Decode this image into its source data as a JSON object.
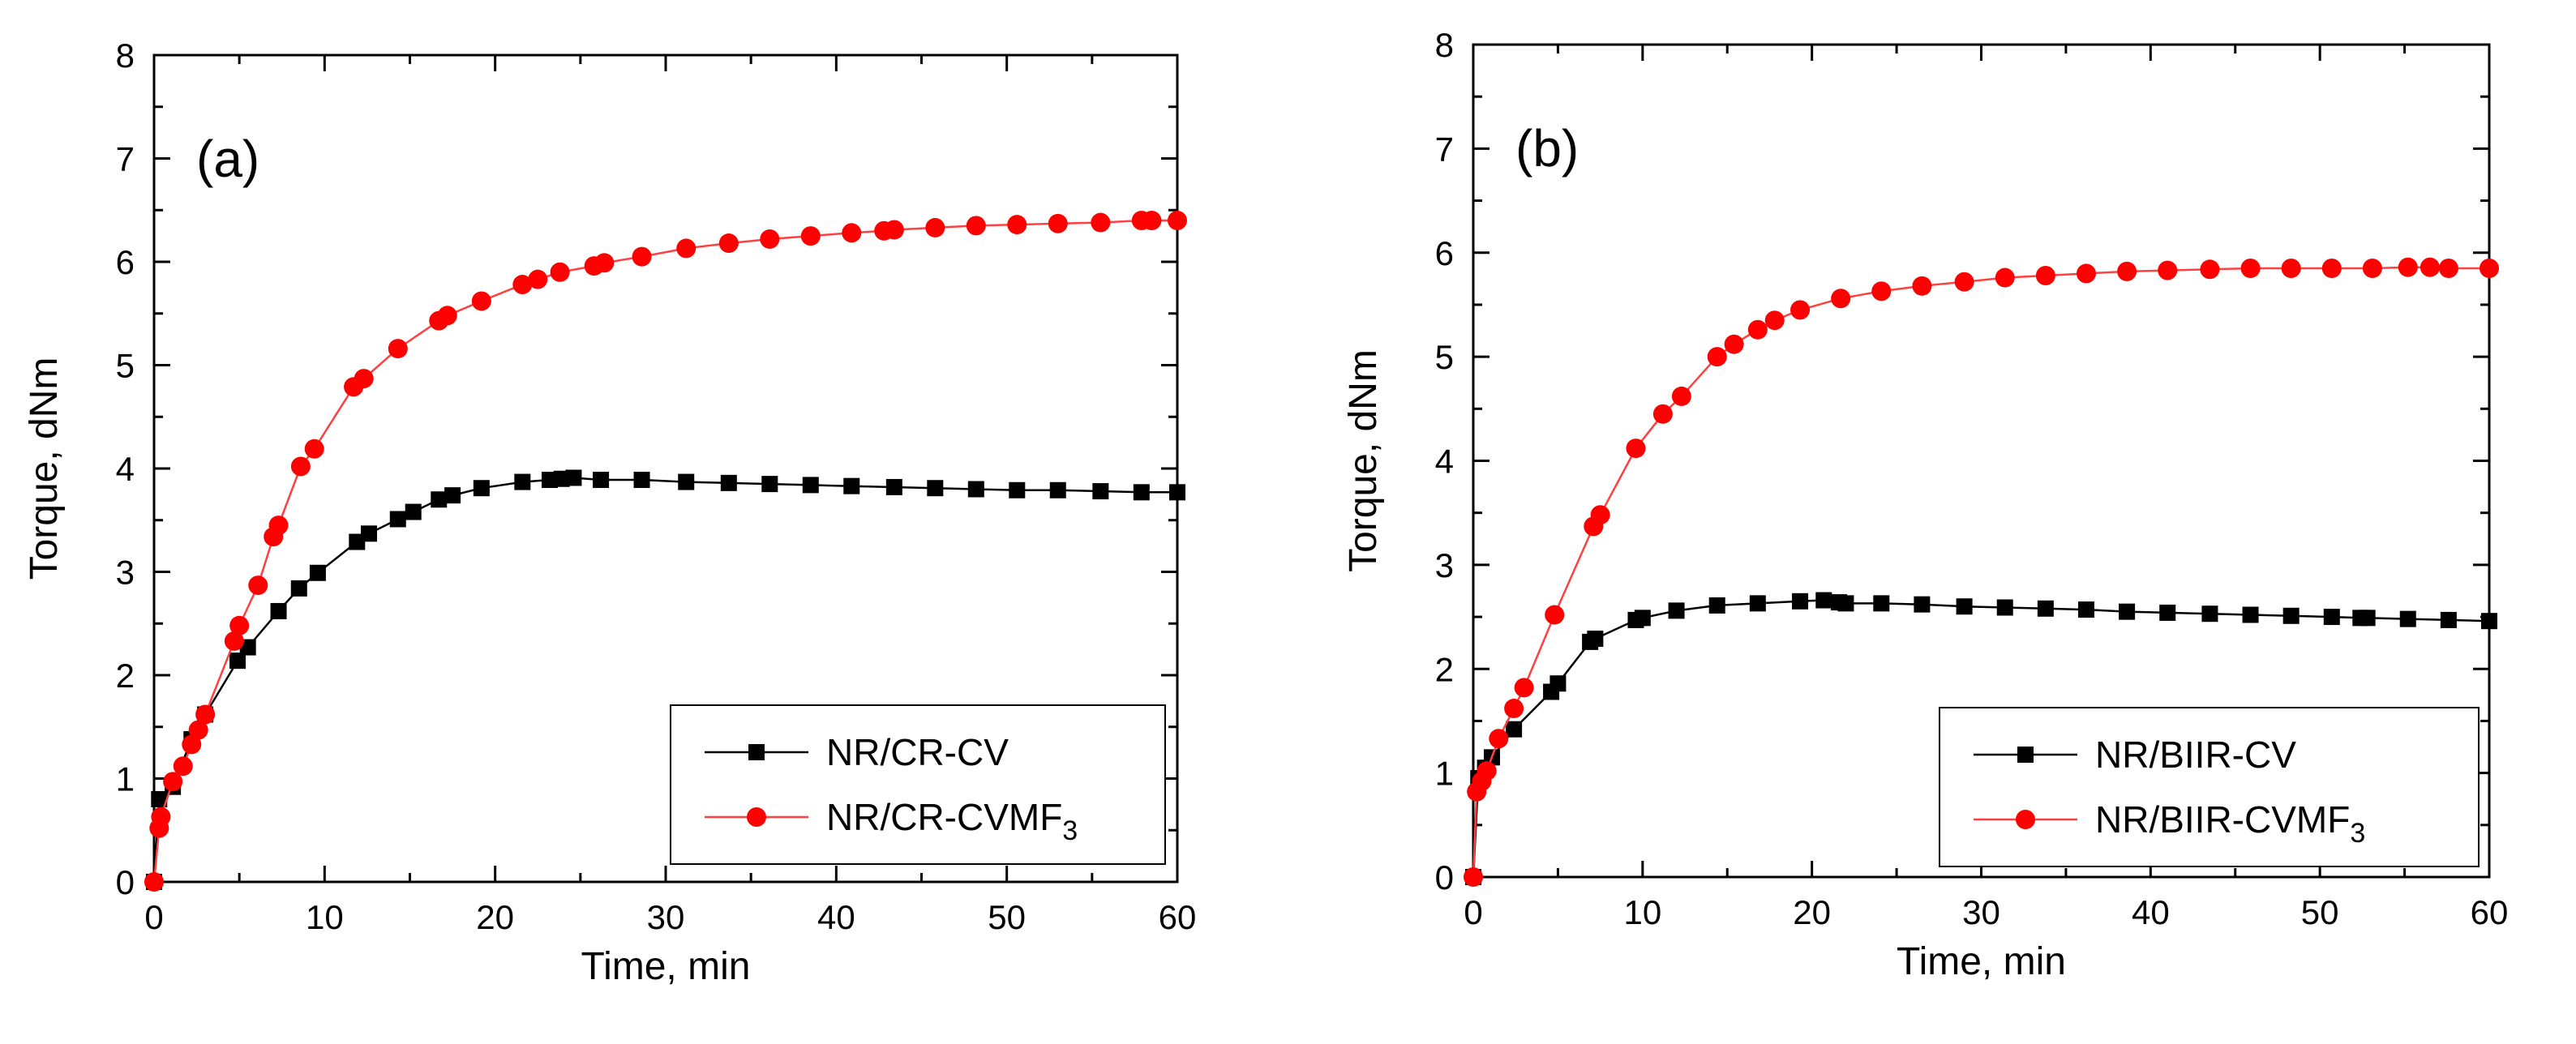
{
  "chart_data": [
    {
      "type": "line",
      "panel_label": "(a)",
      "xlabel": "Time, min",
      "ylabel": "Torque, dNm",
      "xlim": [
        0,
        60
      ],
      "ylim": [
        0,
        8
      ],
      "xticks": [
        0,
        10,
        20,
        30,
        40,
        50,
        60
      ],
      "yticks": [
        0,
        1,
        2,
        3,
        4,
        5,
        6,
        7,
        8
      ],
      "grid": false,
      "legend_position": "lower-right",
      "series": [
        {
          "name": "NR/CR-CV",
          "legend_main": "NR/CR-CV",
          "legend_sub": "",
          "marker": "square",
          "color": "#000000",
          "line_color": "#000000",
          "x": [
            0,
            0.3,
            1.1,
            2.2,
            3.0,
            4.9,
            5.5,
            7.3,
            8.5,
            9.6,
            11.9,
            12.6,
            14.3,
            15.2,
            16.7,
            17.5,
            19.2,
            21.6,
            23.2,
            23.9,
            24.6,
            26.2,
            28.6,
            31.2,
            33.7,
            36.1,
            38.5,
            40.9,
            43.4,
            45.8,
            48.2,
            50.6,
            53.0,
            55.5,
            57.9,
            60.0
          ],
          "y": [
            0,
            0.8,
            0.92,
            1.38,
            1.62,
            2.14,
            2.27,
            2.62,
            2.84,
            2.99,
            3.29,
            3.37,
            3.51,
            3.58,
            3.7,
            3.74,
            3.81,
            3.87,
            3.89,
            3.9,
            3.91,
            3.89,
            3.89,
            3.87,
            3.86,
            3.85,
            3.84,
            3.83,
            3.82,
            3.81,
            3.8,
            3.79,
            3.79,
            3.78,
            3.77,
            3.77
          ]
        },
        {
          "name": "NR/CR-CVMF3",
          "legend_main": "NR/CR-CVMF",
          "legend_sub": "3",
          "marker": "circle",
          "color": "#ff0000",
          "line_color": "#ff4040",
          "x": [
            0,
            0.3,
            0.4,
            1.1,
            1.7,
            2.2,
            2.6,
            3.0,
            4.7,
            5.0,
            6.1,
            7.0,
            7.3,
            8.6,
            9.4,
            11.7,
            12.3,
            14.3,
            16.7,
            17.2,
            19.2,
            21.6,
            22.5,
            23.8,
            25.8,
            26.4,
            28.6,
            31.2,
            33.7,
            36.1,
            38.5,
            40.9,
            42.8,
            43.4,
            45.8,
            48.2,
            50.6,
            53.0,
            55.5,
            57.9,
            58.5,
            60.0
          ],
          "y": [
            0,
            0.52,
            0.63,
            0.97,
            1.12,
            1.33,
            1.47,
            1.62,
            2.33,
            2.48,
            2.87,
            3.34,
            3.45,
            4.02,
            4.19,
            4.79,
            4.87,
            5.16,
            5.43,
            5.48,
            5.62,
            5.78,
            5.83,
            5.9,
            5.96,
            5.99,
            6.05,
            6.13,
            6.18,
            6.22,
            6.25,
            6.28,
            6.3,
            6.31,
            6.33,
            6.35,
            6.36,
            6.37,
            6.38,
            6.4,
            6.4,
            6.4
          ]
        }
      ]
    },
    {
      "type": "line",
      "panel_label": "(b)",
      "xlabel": "Time, min",
      "ylabel": "Torque, dNm",
      "xlim": [
        0,
        60
      ],
      "ylim": [
        0,
        8
      ],
      "xticks": [
        0,
        10,
        20,
        30,
        40,
        50,
        60
      ],
      "yticks": [
        0,
        1,
        2,
        3,
        4,
        5,
        6,
        7,
        8
      ],
      "grid": false,
      "legend_position": "lower-right",
      "series": [
        {
          "name": "NR/BIIR-CV",
          "legend_main": "NR/BIIR-CV",
          "legend_sub": "",
          "marker": "square",
          "color": "#000000",
          "line_color": "#000000",
          "x": [
            0,
            0.3,
            0.7,
            1.1,
            2.4,
            4.6,
            5.0,
            6.9,
            7.2,
            9.6,
            10.0,
            12.0,
            14.4,
            16.8,
            19.3,
            20.7,
            21.6,
            22.0,
            24.1,
            26.5,
            29.0,
            31.4,
            33.8,
            36.2,
            38.6,
            41.0,
            43.5,
            45.9,
            48.3,
            50.7,
            52.4,
            52.8,
            55.2,
            57.6,
            60.0
          ],
          "y": [
            0,
            0.95,
            1.05,
            1.15,
            1.42,
            1.78,
            1.86,
            2.26,
            2.29,
            2.47,
            2.49,
            2.56,
            2.61,
            2.63,
            2.65,
            2.66,
            2.64,
            2.63,
            2.63,
            2.62,
            2.6,
            2.59,
            2.58,
            2.57,
            2.55,
            2.54,
            2.53,
            2.52,
            2.51,
            2.5,
            2.49,
            2.49,
            2.48,
            2.47,
            2.46
          ]
        },
        {
          "name": "NR/BIIR-CVMF3",
          "legend_main": "NR/BIIR-CVMF",
          "legend_sub": "3",
          "marker": "circle",
          "color": "#ff0000",
          "line_color": "#ff4040",
          "x": [
            0,
            0.2,
            0.5,
            0.8,
            1.5,
            2.4,
            3.0,
            4.8,
            7.1,
            7.5,
            9.6,
            11.2,
            12.3,
            14.4,
            15.4,
            16.8,
            17.8,
            19.3,
            21.7,
            24.1,
            26.5,
            29.0,
            31.4,
            33.8,
            36.2,
            38.6,
            41.0,
            43.5,
            45.9,
            48.3,
            50.7,
            53.1,
            55.2,
            56.5,
            57.6,
            60.0
          ],
          "y": [
            0,
            0.82,
            0.92,
            1.02,
            1.33,
            1.62,
            1.82,
            2.52,
            3.37,
            3.48,
            4.12,
            4.45,
            4.62,
            5.0,
            5.12,
            5.26,
            5.35,
            5.45,
            5.56,
            5.63,
            5.68,
            5.72,
            5.76,
            5.78,
            5.8,
            5.82,
            5.83,
            5.84,
            5.85,
            5.85,
            5.85,
            5.85,
            5.86,
            5.86,
            5.85,
            5.85
          ]
        }
      ]
    }
  ]
}
